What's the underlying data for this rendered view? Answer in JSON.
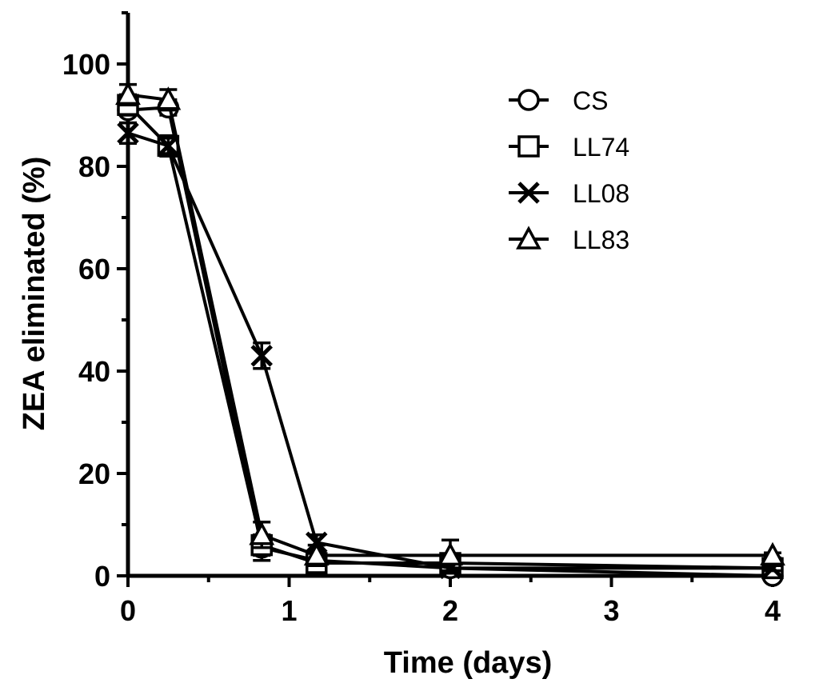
{
  "chart_data": {
    "type": "line",
    "xlabel": "Time (days)",
    "ylabel": "ZEA eliminated (%)",
    "xlim": [
      0,
      4
    ],
    "ylim": [
      0,
      110
    ],
    "x_ticks": [
      "0",
      "1",
      "2",
      "3",
      "4"
    ],
    "y_ticks": [
      "0",
      "20",
      "40",
      "60",
      "80",
      "100"
    ],
    "grid": false,
    "legend_position": "top-right",
    "series": [
      {
        "name": "CS",
        "marker": "circle",
        "x": [
          0,
          0.25,
          0.83,
          1.17,
          2,
          4
        ],
        "y": [
          91,
          91.5,
          5.5,
          3,
          1.5,
          0
        ],
        "error": [
          2.5,
          1.5,
          2.5,
          1.5,
          1,
          0.5
        ]
      },
      {
        "name": "LL74",
        "marker": "square",
        "x": [
          0,
          0.25,
          0.83,
          1.17,
          2,
          4
        ],
        "y": [
          92,
          84,
          6,
          2.5,
          2.5,
          1.5
        ],
        "error": [
          2,
          2,
          2,
          1.5,
          1.5,
          0.5
        ]
      },
      {
        "name": "LL08",
        "marker": "x",
        "x": [
          0,
          0.25,
          0.83,
          1.17,
          2,
          4
        ],
        "y": [
          86.5,
          84,
          43,
          6.5,
          1.5,
          1.5
        ],
        "error": [
          2,
          1.5,
          2.5,
          1.5,
          1,
          0.5
        ]
      },
      {
        "name": "LL83",
        "marker": "triangle",
        "x": [
          0,
          0.25,
          0.83,
          1.17,
          2,
          4
        ],
        "y": [
          94,
          93,
          8,
          4,
          4,
          4
        ],
        "error": [
          2,
          2,
          2.5,
          2,
          3,
          0.5
        ]
      }
    ]
  }
}
